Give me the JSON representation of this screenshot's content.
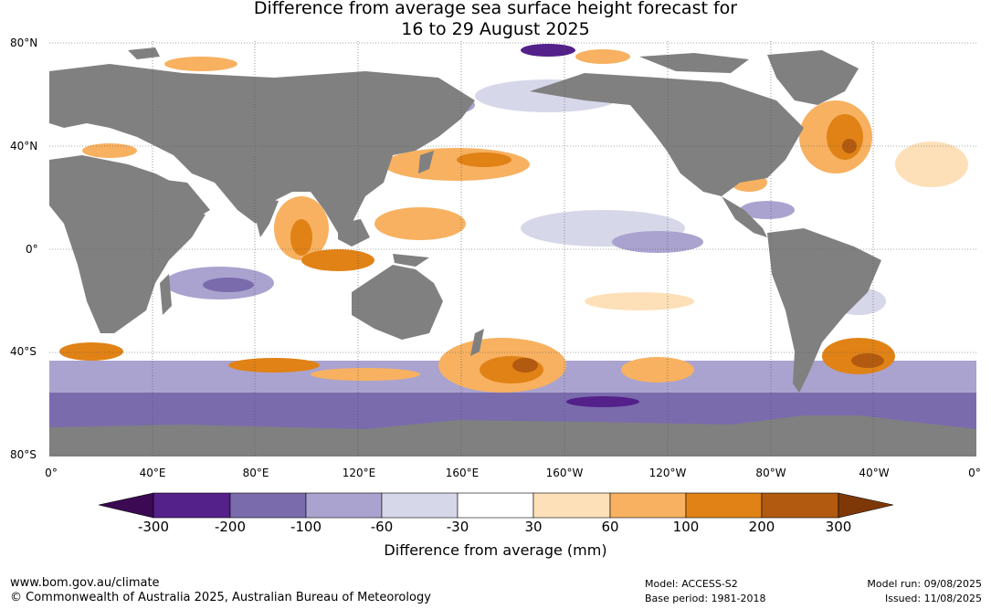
{
  "title": {
    "line1": "Difference from average sea surface height forecast for",
    "line2": "16 to 29 August 2025"
  },
  "lat_labels": [
    "80°N",
    "40°N",
    "0°",
    "40°S",
    "80°S"
  ],
  "lon_labels": [
    "0°",
    "40°E",
    "80°E",
    "120°E",
    "160°E",
    "160°W",
    "120°W",
    "80°W",
    "40°W",
    "0°"
  ],
  "colorbar": {
    "title": "Difference from average (mm)",
    "ticks": [
      "-300",
      "-200",
      "-100",
      "-60",
      "-30",
      "30",
      "60",
      "100",
      "200",
      "300"
    ],
    "colors": [
      "#3b0a52",
      "#54208a",
      "#7a6bad",
      "#aaa3cf",
      "#d7d7ea",
      "#ffffff",
      "#fde0b8",
      "#f7b160",
      "#e08216",
      "#b15a10",
      "#7e3808"
    ]
  },
  "footer": {
    "website": "www.bom.gov.au/climate",
    "copyright": "© Commonwealth of Australia 2025, Australian Bureau of Meteorology",
    "model": "Model: ACCESS-S2",
    "base_period": "Base period: 1981-2018",
    "model_run": "Model run: 09/08/2025",
    "issued": "Issued: 11/08/2025"
  },
  "colors": {
    "land": "#808080",
    "grid": "#555555"
  }
}
